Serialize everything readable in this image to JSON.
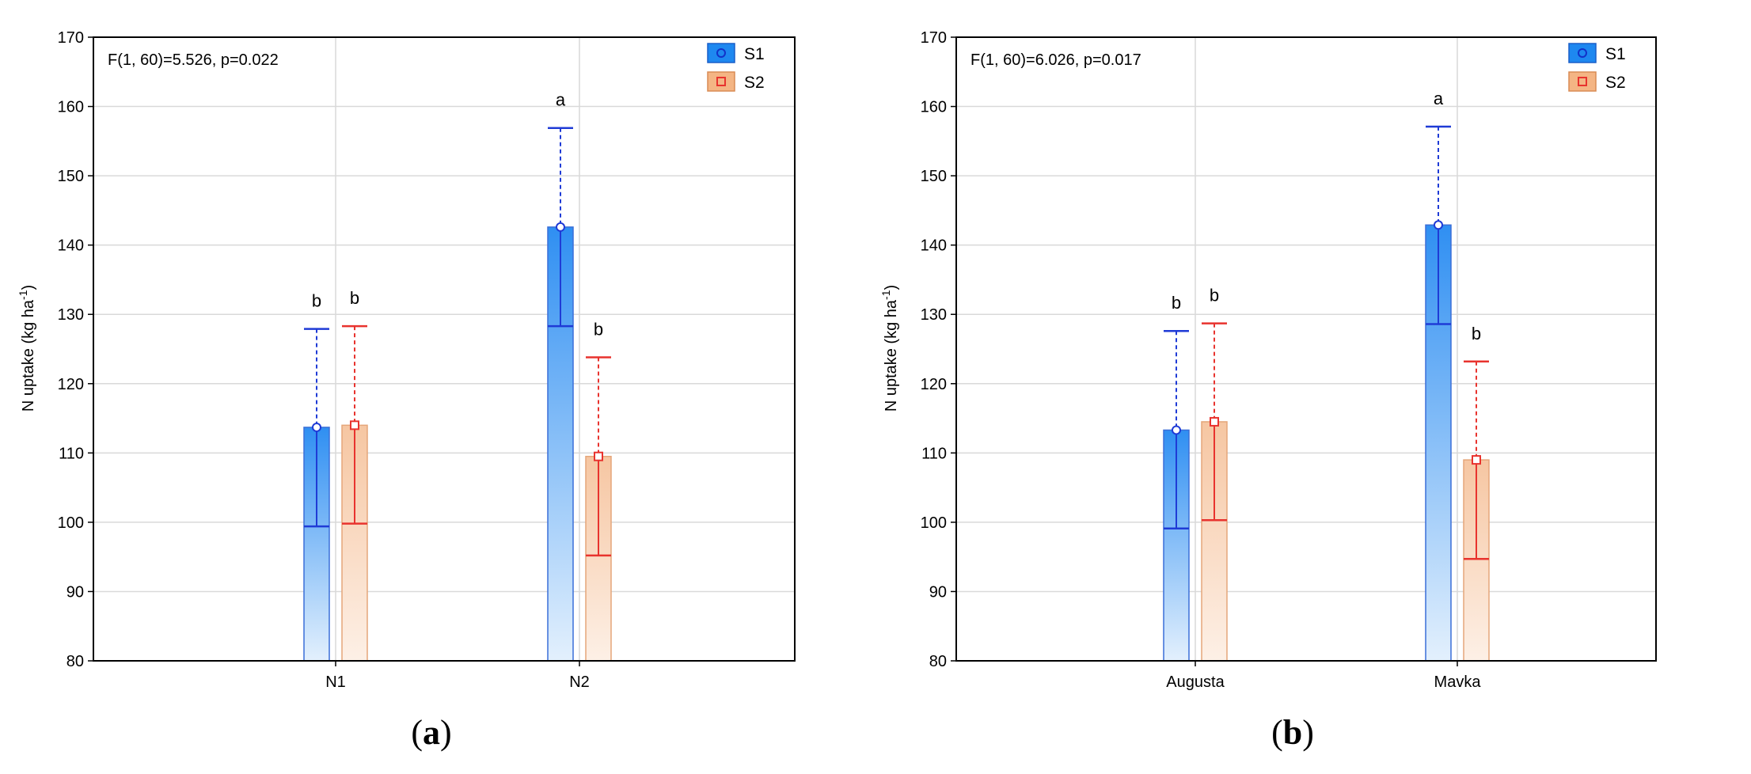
{
  "chart_data": [
    {
      "type": "bar",
      "panel_label": "a",
      "annotation": "F(1, 60)=5.526, p=0.022",
      "xlabel": "",
      "ylabel": "N uptake (kg ha",
      "ylabel_sup": "-1",
      "ylabel_end": ")",
      "ylim": [
        80,
        170
      ],
      "yticks": [
        80,
        90,
        100,
        110,
        120,
        130,
        140,
        150,
        160,
        170
      ],
      "categories": [
        "N1",
        "N2"
      ],
      "legend_position": "top-right",
      "grid": true,
      "series": [
        {
          "name": "S1",
          "color": "#1e88f0",
          "marker": "circle",
          "values": [
            113.7,
            142.6
          ],
          "err_low": [
            99.4,
            128.3
          ],
          "err_high": [
            127.9,
            156.9
          ],
          "letters": [
            "b",
            "a"
          ]
        },
        {
          "name": "S2",
          "color": "#ef8a4a",
          "marker": "square",
          "values": [
            114.0,
            109.5
          ],
          "err_low": [
            99.8,
            95.2
          ],
          "err_high": [
            128.3,
            123.8
          ],
          "letters": [
            "b",
            "b"
          ]
        }
      ]
    },
    {
      "type": "bar",
      "panel_label": "b",
      "annotation": "F(1, 60)=6.026, p=0.017",
      "xlabel": "",
      "ylabel": "N uptake (kg ha",
      "ylabel_sup": "-1",
      "ylabel_end": ")",
      "ylim": [
        80,
        170
      ],
      "yticks": [
        80,
        90,
        100,
        110,
        120,
        130,
        140,
        150,
        160,
        170
      ],
      "categories": [
        "Augusta",
        "Mavka"
      ],
      "legend_position": "top-right",
      "grid": true,
      "series": [
        {
          "name": "S1",
          "color": "#1e88f0",
          "marker": "circle",
          "values": [
            113.3,
            142.9
          ],
          "err_low": [
            99.1,
            128.6
          ],
          "err_high": [
            127.6,
            157.1
          ],
          "letters": [
            "b",
            "a"
          ]
        },
        {
          "name": "S2",
          "color": "#ef8a4a",
          "marker": "square",
          "values": [
            114.5,
            109.0
          ],
          "err_low": [
            100.3,
            94.7
          ],
          "err_high": [
            128.7,
            123.2
          ],
          "letters": [
            "b",
            "b"
          ]
        }
      ]
    }
  ]
}
